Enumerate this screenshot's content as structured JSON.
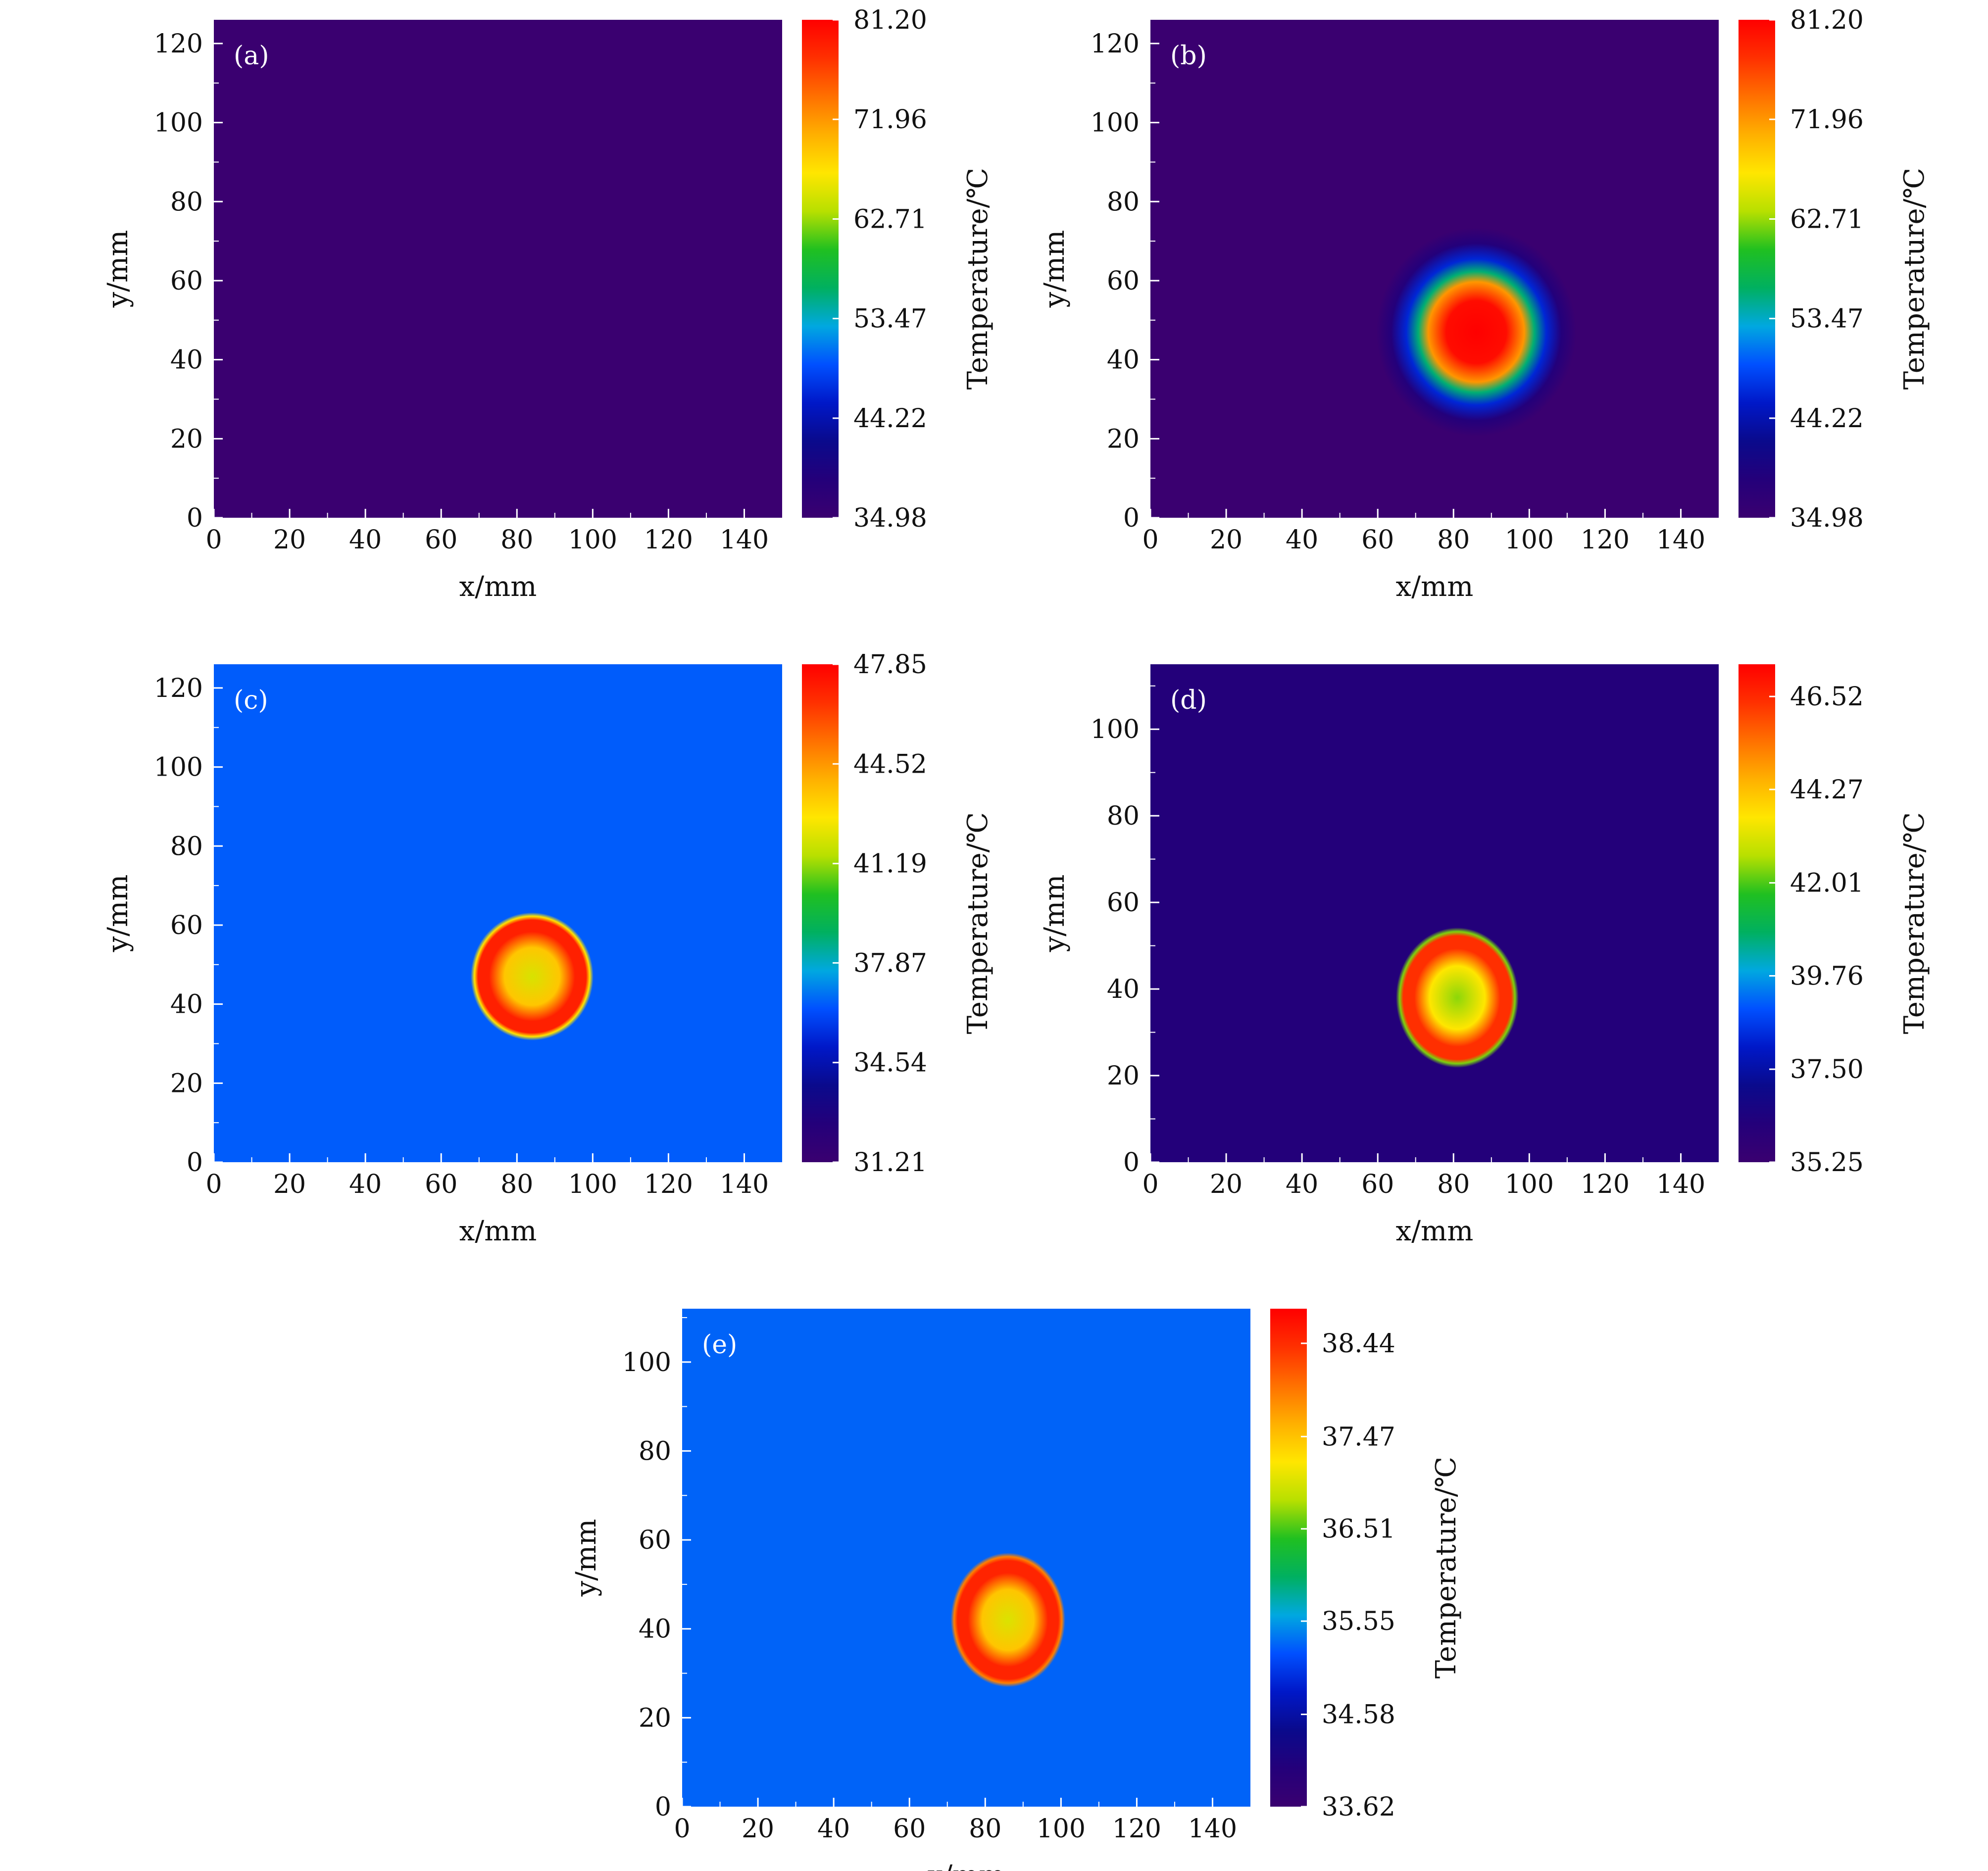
{
  "chart_data": [
    {
      "type": "heatmap",
      "panel_label": "(a)",
      "xlabel": "x/mm",
      "ylabel": "y/mm",
      "xlim": [
        0,
        150
      ],
      "ylim": [
        0,
        126
      ],
      "xticks": [
        0,
        20,
        40,
        60,
        80,
        100,
        120,
        140
      ],
      "yticks": [
        0,
        20,
        40,
        60,
        80,
        100,
        120
      ],
      "colorbar": {
        "title": "Temperature/℃",
        "min": 34.98,
        "max": 81.2,
        "ticks": [
          "81.20",
          "71.96",
          "62.71",
          "53.47",
          "44.22",
          "34.98"
        ]
      },
      "background_value": 35.0,
      "spot": null
    },
    {
      "type": "heatmap",
      "panel_label": "(b)",
      "xlabel": "x/mm",
      "ylabel": "y/mm",
      "xlim": [
        0,
        150
      ],
      "ylim": [
        0,
        126
      ],
      "xticks": [
        0,
        20,
        40,
        60,
        80,
        100,
        120,
        140
      ],
      "yticks": [
        0,
        20,
        40,
        60,
        80,
        100,
        120
      ],
      "colorbar": {
        "title": "Temperature/℃",
        "min": 34.98,
        "max": 81.2,
        "ticks": [
          "81.20",
          "71.96",
          "62.71",
          "53.47",
          "44.22",
          "34.98"
        ]
      },
      "background_value": 35.0,
      "spot": {
        "shape": "gaussian",
        "cx": 86,
        "cy": 47,
        "rx": 16,
        "ry": 16,
        "peak": 81.2
      }
    },
    {
      "type": "heatmap",
      "panel_label": "(c)",
      "xlabel": "x/mm",
      "ylabel": "y/mm",
      "xlim": [
        0,
        150
      ],
      "ylim": [
        0,
        126
      ],
      "xticks": [
        0,
        20,
        40,
        60,
        80,
        100,
        120,
        140
      ],
      "yticks": [
        0,
        20,
        40,
        60,
        80,
        100,
        120
      ],
      "colorbar": {
        "title": "Temperature/℃",
        "min": 31.21,
        "max": 47.85,
        "ticks": [
          "47.85",
          "44.52",
          "41.19",
          "37.87",
          "34.54",
          "31.21"
        ]
      },
      "background_value": 36.5,
      "spot": {
        "shape": "ring",
        "cx": 84,
        "cy": 47,
        "rx": 15,
        "ry": 15,
        "edge": 47.0,
        "core": 42.0
      }
    },
    {
      "type": "heatmap",
      "panel_label": "(d)",
      "xlabel": "x/mm",
      "ylabel": "y/mm",
      "xlim": [
        0,
        150
      ],
      "ylim": [
        0,
        115
      ],
      "xticks": [
        0,
        20,
        40,
        60,
        80,
        100,
        120,
        140
      ],
      "yticks": [
        0,
        20,
        40,
        60,
        80,
        100
      ],
      "colorbar": {
        "title": "Temperature/℃",
        "min": 35.25,
        "max": 47.3,
        "ticks": [
          "46.52",
          "44.27",
          "42.01",
          "39.76",
          "37.50",
          "35.25"
        ]
      },
      "background_value": 36.2,
      "spot": {
        "shape": "ring",
        "cx": 81,
        "cy": 38,
        "rx": 15,
        "ry": 15,
        "edge": 46.4,
        "core": 42.4
      }
    },
    {
      "type": "heatmap",
      "panel_label": "(e)",
      "xlabel": "x/mm",
      "ylabel": "y/mm",
      "xlim": [
        0,
        150
      ],
      "ylim": [
        0,
        112
      ],
      "xticks": [
        0,
        20,
        40,
        60,
        80,
        100,
        120,
        140
      ],
      "yticks": [
        0,
        20,
        40,
        60,
        80,
        100
      ],
      "colorbar": {
        "title": "Temperature/℃",
        "min": 33.62,
        "max": 38.8,
        "ticks": [
          "38.44",
          "37.47",
          "36.51",
          "35.55",
          "34.58",
          "33.62"
        ]
      },
      "background_value": 35.3,
      "spot": {
        "shape": "ring",
        "cx": 86,
        "cy": 42,
        "rx": 14,
        "ry": 14,
        "edge": 38.5,
        "core": 37.0
      }
    }
  ],
  "colormap": [
    "#3a0070",
    "#24007a",
    "#0a0a8c",
    "#0018c8",
    "#0050ff",
    "#00a8e0",
    "#00b060",
    "#20c020",
    "#b8e000",
    "#ffe600",
    "#ffb000",
    "#ff7000",
    "#ff3000",
    "#ff0000"
  ]
}
